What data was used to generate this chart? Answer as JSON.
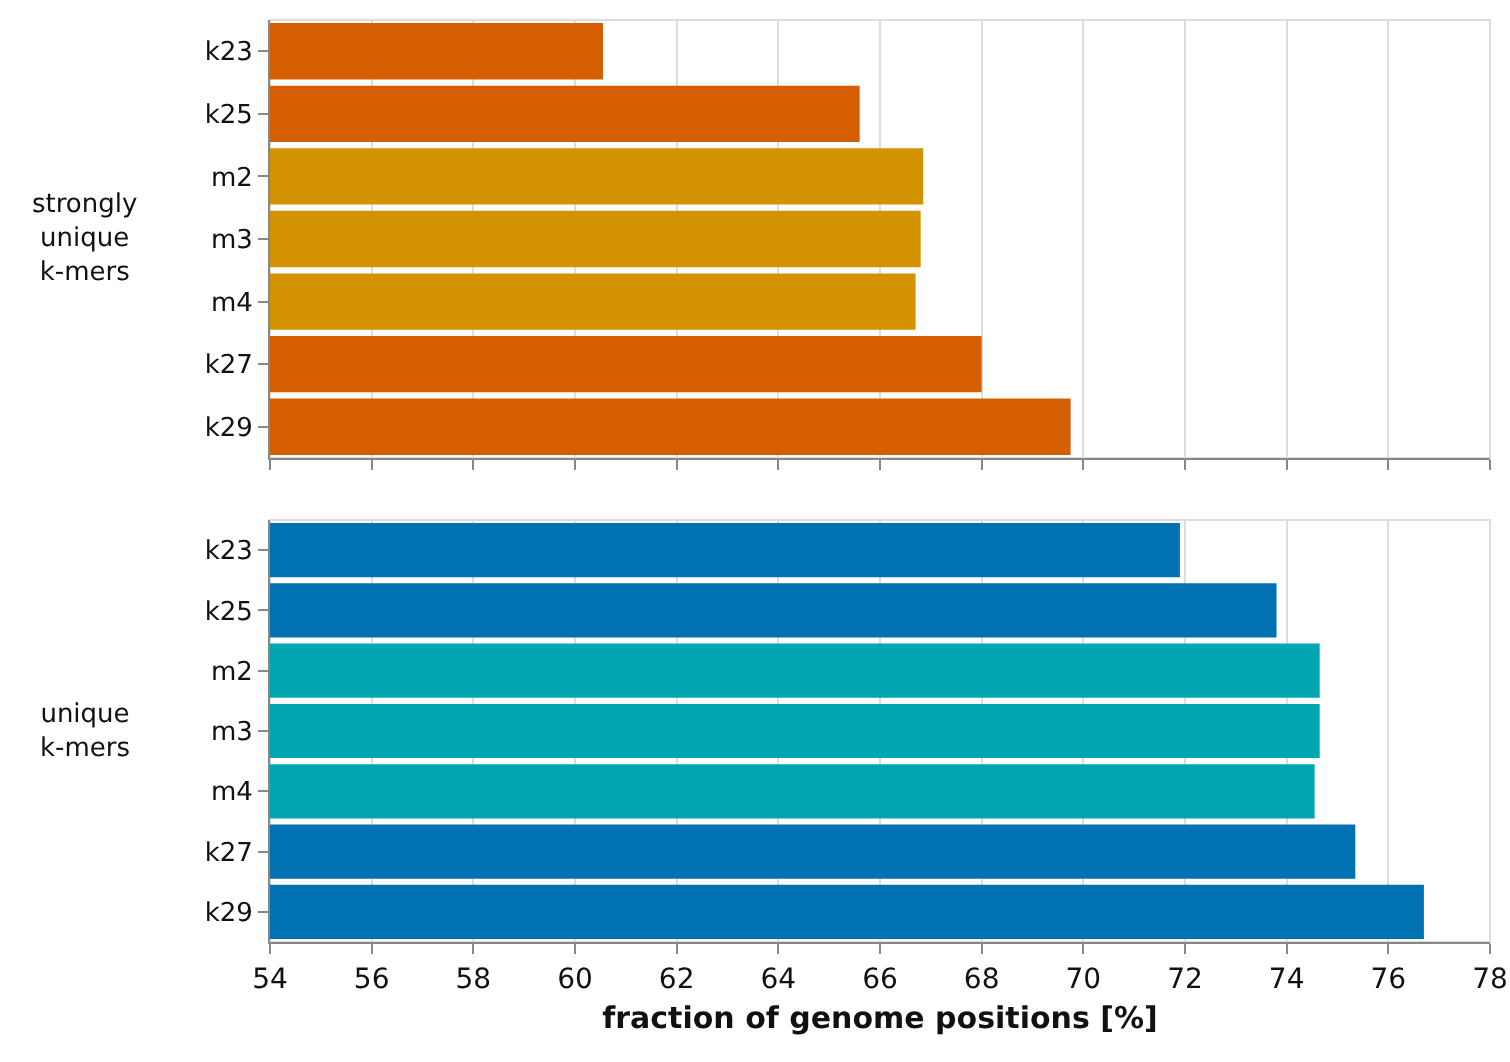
{
  "chart_data": [
    {
      "type": "bar",
      "orientation": "horizontal",
      "ylabel": "strongly unique k-mers",
      "categories": [
        "k23",
        "k25",
        "m2",
        "m3",
        "m4",
        "k27",
        "k29"
      ],
      "values": [
        60.55,
        65.6,
        66.85,
        66.8,
        66.7,
        68.0,
        69.75
      ],
      "colors": [
        "#d55e00",
        "#d55e00",
        "#d39200",
        "#d39200",
        "#d39200",
        "#d55e00",
        "#d55e00"
      ],
      "xlim": [
        54,
        78
      ],
      "xticks": [
        54,
        56,
        58,
        60,
        62,
        64,
        66,
        68,
        70,
        72,
        74,
        76,
        78
      ],
      "grid": "x",
      "tick_labels": "y"
    },
    {
      "type": "bar",
      "orientation": "horizontal",
      "ylabel": "unique k-mers",
      "xlabel": "fraction of genome positions [%]",
      "categories": [
        "k23",
        "k25",
        "m2",
        "m3",
        "m4",
        "k27",
        "k29"
      ],
      "values": [
        71.9,
        73.8,
        74.65,
        74.65,
        74.55,
        75.35,
        76.7
      ],
      "colors": [
        "#0072b2",
        "#0072b2",
        "#00a7b2",
        "#00a7b2",
        "#00a7b2",
        "#0072b2",
        "#0072b2"
      ],
      "xlim": [
        54,
        78
      ],
      "xticks": [
        54,
        56,
        58,
        60,
        62,
        64,
        66,
        68,
        70,
        72,
        74,
        76,
        78
      ],
      "grid": "x"
    }
  ]
}
